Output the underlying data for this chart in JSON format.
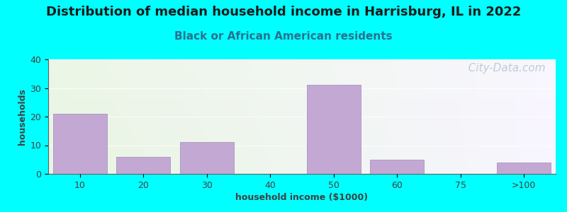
{
  "title": "Distribution of median household income in Harrisburg, IL in 2022",
  "subtitle": "Black or African American residents",
  "xlabel": "household income ($1000)",
  "ylabel": "households",
  "background_color": "#00FFFF",
  "plot_bg_color_topleft": "#e8f5e2",
  "plot_bg_color_topright": "#f5f5ff",
  "plot_bg_color_bottomleft": "#d8f0d8",
  "plot_bg_color_bottomright": "#eeeeff",
  "bar_color": "#c4a8d4",
  "bar_edge_color": "#a088b8",
  "categories": [
    "10",
    "20",
    "30",
    "40",
    "50",
    "60",
    "75",
    ">100"
  ],
  "values": [
    21,
    6,
    11,
    0,
    31,
    5,
    0,
    4
  ],
  "ylim": [
    0,
    40
  ],
  "yticks": [
    0,
    10,
    20,
    30,
    40
  ],
  "title_fontsize": 13,
  "subtitle_fontsize": 11,
  "axis_label_fontsize": 9,
  "tick_fontsize": 9,
  "watermark_text": "  City-Data.com",
  "watermark_color": "#b8c4d0",
  "watermark_fontsize": 11
}
